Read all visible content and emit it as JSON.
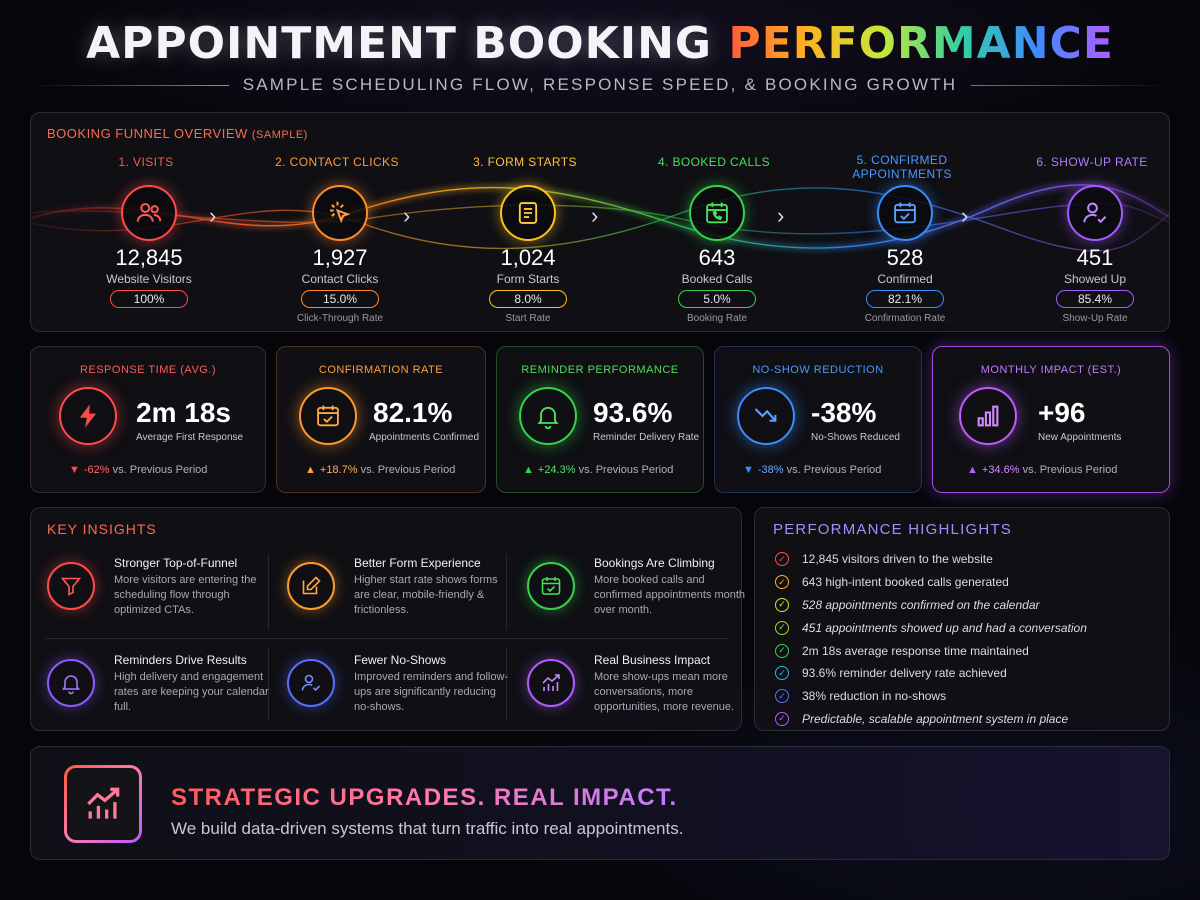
{
  "header": {
    "title_main": "APPOINTMENT BOOKING",
    "title_accent": "PERFORMANCE",
    "subtitle": "SAMPLE SCHEDULING FLOW, RESPONSE SPEED, & BOOKING GROWTH"
  },
  "funnel": {
    "heading": "BOOKING FUNNEL OVERVIEW",
    "heading_note": "(SAMPLE)",
    "stages": [
      {
        "label": "1. VISITS",
        "value": "12,845",
        "name": "Website Visitors",
        "pill": "100%",
        "rate_label": "",
        "icon": "users-icon",
        "color": "#ff4a4a"
      },
      {
        "label": "2. CONTACT CLICKS",
        "value": "1,927",
        "name": "Contact Clicks",
        "pill": "15.0%",
        "rate_label": "Click-Through Rate",
        "icon": "cursor-click-icon",
        "color": "#ff8a2a"
      },
      {
        "label": "3. FORM STARTS",
        "value": "1,024",
        "name": "Form Starts",
        "pill": "8.0%",
        "rate_label": "Start Rate",
        "icon": "form-icon",
        "color": "#ffc21a"
      },
      {
        "label": "4. BOOKED CALLS",
        "value": "643",
        "name": "Booked Calls",
        "pill": "5.0%",
        "rate_label": "Booking Rate",
        "icon": "calendar-phone-icon",
        "color": "#36d24a"
      },
      {
        "label_line1": "5. CONFIRMED",
        "label_line2": "APPOINTMENTS",
        "value": "528",
        "name": "Confirmed",
        "pill": "82.1%",
        "rate_label": "Confirmation Rate",
        "icon": "calendar-check-icon",
        "color": "#3b8cff"
      },
      {
        "label": "6. SHOW-UP RATE",
        "value": "451",
        "name": "Showed Up",
        "pill": "85.4%",
        "rate_label": "Show-Up Rate",
        "icon": "user-check-icon",
        "color": "#a35cff"
      }
    ]
  },
  "kpis": [
    {
      "title": "RESPONSE TIME (AVG.)",
      "value": "2m 18s",
      "sub": "Average First Response",
      "delta": "-62%",
      "compare": "vs. Previous Period",
      "direction": "down",
      "icon": "lightning-icon",
      "color": "#ff4a4a"
    },
    {
      "title": "CONFIRMATION RATE",
      "value": "82.1%",
      "sub": "Appointments Confirmed",
      "delta": "+18.7%",
      "compare": "vs. Previous Period",
      "direction": "up",
      "icon": "calendar-check-icon",
      "color": "#ff9a2a"
    },
    {
      "title": "REMINDER PERFORMANCE",
      "value": "93.6%",
      "sub": "Reminder Delivery Rate",
      "delta": "+24.3%",
      "compare": "vs. Previous Period",
      "direction": "up",
      "icon": "bell-icon",
      "color": "#36d24a"
    },
    {
      "title": "NO-SHOW REDUCTION",
      "value": "-38%",
      "sub": "No-Shows Reduced",
      "delta": "-38%",
      "compare": "vs. Previous Period",
      "direction": "down",
      "icon": "trend-down-icon",
      "color": "#3b8cff"
    },
    {
      "title": "MONTHLY IMPACT (EST.)",
      "value": "+96",
      "sub": "New Appointments",
      "delta": "+34.6%",
      "compare": "vs. Previous Period",
      "direction": "up",
      "icon": "bar-chart-icon",
      "color": "#c05cff"
    }
  ],
  "insights": {
    "title": "KEY INSIGHTS",
    "items": [
      {
        "title": "Stronger Top-of-Funnel",
        "text": "More visitors are entering the scheduling flow through optimized CTAs.",
        "icon": "funnel-icon",
        "color": "#ff4a4a"
      },
      {
        "title": "Better Form Experience",
        "text": "Higher start rate shows forms are clear, mobile-friendly & frictionless.",
        "icon": "edit-icon",
        "color": "#ff9a2a"
      },
      {
        "title": "Bookings Are Climbing",
        "text": "More booked calls and confirmed appointments month over month.",
        "icon": "calendar-check-icon",
        "color": "#36d24a"
      },
      {
        "title": "Reminders Drive Results",
        "text": "High delivery and engagement rates are keeping your calendar full.",
        "icon": "bell-icon",
        "color": "#8a5cff"
      },
      {
        "title": "Fewer No-Shows",
        "text": "Improved reminders and follow-ups are significantly reducing no-shows.",
        "icon": "user-check-icon",
        "color": "#5a6cff"
      },
      {
        "title": "Real Business Impact",
        "text": "More show-ups mean more conversations, more opportunities, more revenue.",
        "icon": "growth-chart-icon",
        "color": "#b05cff"
      }
    ]
  },
  "highlights": {
    "title": "PERFORMANCE HIGHLIGHTS",
    "items": [
      {
        "text": "12,845 visitors driven to the website",
        "color": "#ff4a4a"
      },
      {
        "text": "643 high-intent booked calls generated",
        "color": "#ffb020"
      },
      {
        "text": "528 appointments confirmed on the calendar",
        "color": "#d8e02a"
      },
      {
        "text": "451 appointments showed up and had a conversation",
        "color": "#9ad82a"
      },
      {
        "text": "2m 18s average response time maintained",
        "color": "#36d24a"
      },
      {
        "text": "93.6% reminder delivery rate achieved",
        "color": "#2ab8d8"
      },
      {
        "text": "38% reduction in no-shows",
        "color": "#5a6cff"
      },
      {
        "text": "Predictable, scalable appointment system in place",
        "color": "#b05cff"
      }
    ]
  },
  "footer": {
    "title": "STRATEGIC UPGRADES. REAL IMPACT.",
    "text": "We build data-driven systems that turn traffic into real appointments.",
    "icon": "growth-chart-icon"
  }
}
